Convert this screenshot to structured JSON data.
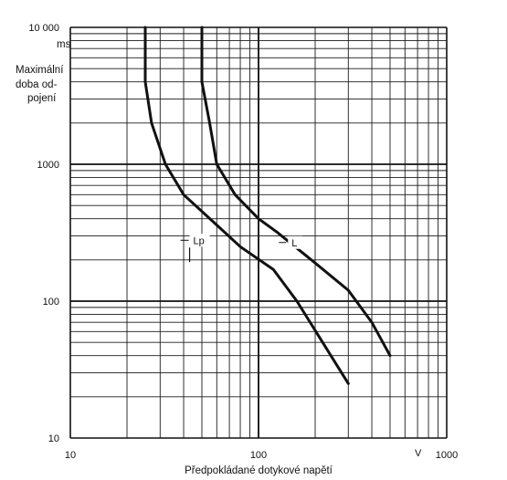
{
  "chart_data": {
    "type": "line",
    "title": "",
    "xlabel": "Předpokládané dotykové napětí",
    "x_unit": "V",
    "ylabel_lines": [
      "Maximální",
      "doba od-",
      "pojení"
    ],
    "y_unit": "ms",
    "x_scale": "log",
    "y_scale": "log",
    "xlim": [
      10,
      1000
    ],
    "ylim": [
      10,
      10000
    ],
    "x_ticks": [
      10,
      100,
      1000
    ],
    "x_tick_labels": [
      "10",
      "100",
      "1000"
    ],
    "y_ticks": [
      10,
      100,
      1000,
      10000
    ],
    "y_tick_labels": [
      "10",
      "100",
      "1000",
      "10 000"
    ],
    "grid": true,
    "legend": "inline labels on curves",
    "series": [
      {
        "name": "Lp",
        "x": [
          25,
          25,
          27,
          32,
          40,
          60,
          80,
          120,
          160,
          300
        ],
        "y": [
          10000,
          4000,
          2000,
          1000,
          600,
          360,
          250,
          170,
          100,
          25
        ]
      },
      {
        "name": "L",
        "x": [
          50,
          50,
          55,
          60,
          75,
          100,
          125,
          200,
          300,
          400,
          500
        ],
        "y": [
          10000,
          4000,
          2000,
          1000,
          600,
          400,
          320,
          190,
          120,
          70,
          40
        ]
      }
    ]
  }
}
